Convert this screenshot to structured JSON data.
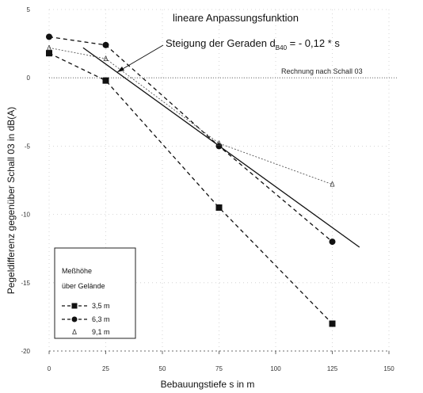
{
  "chart_data": {
    "type": "scatter",
    "xlabel": "Bebauungstiefe s in m",
    "ylabel": "Pegeldifferenz gegenüber Schall 03 in dB(A)",
    "xlim": [
      0,
      150
    ],
    "ylim": [
      -20,
      5
    ],
    "x_ticks": [
      "0",
      "25",
      "50",
      "75",
      "100",
      "125",
      "150"
    ],
    "y_ticks": [
      "5",
      "0",
      "-5",
      "-10",
      "-15",
      "-20"
    ],
    "grid": "dotted",
    "reference_line": {
      "y": 0,
      "label": "Rechnung nach Schall 03"
    },
    "annotation_title": "lineare Anpassungsfunktion",
    "annotation_formula_prefix": "Steigung der Geraden d",
    "annotation_formula_sub": "B40",
    "annotation_formula_suffix": " = - 0,12 * s",
    "legend": {
      "position": "bottom-left",
      "title_line1": "Meßhöhe",
      "title_line2": "über Gelände"
    },
    "series": [
      {
        "name": "3,5 m",
        "marker": "square",
        "x": [
          0,
          25,
          75,
          125
        ],
        "y": [
          1.8,
          -0.2,
          -9.5,
          -18.0
        ]
      },
      {
        "name": "6,3 m",
        "marker": "circle",
        "x": [
          0,
          25,
          75,
          125
        ],
        "y": [
          3.0,
          2.4,
          -5.0,
          -12.0
        ]
      },
      {
        "name": "9,1 m",
        "marker": "triangle",
        "x": [
          0,
          25,
          75,
          125
        ],
        "y": [
          2.2,
          1.4,
          -4.8,
          -7.8
        ]
      }
    ],
    "fit_line": {
      "x": [
        15,
        137
      ],
      "y": [
        2.2,
        -12.4
      ]
    }
  }
}
